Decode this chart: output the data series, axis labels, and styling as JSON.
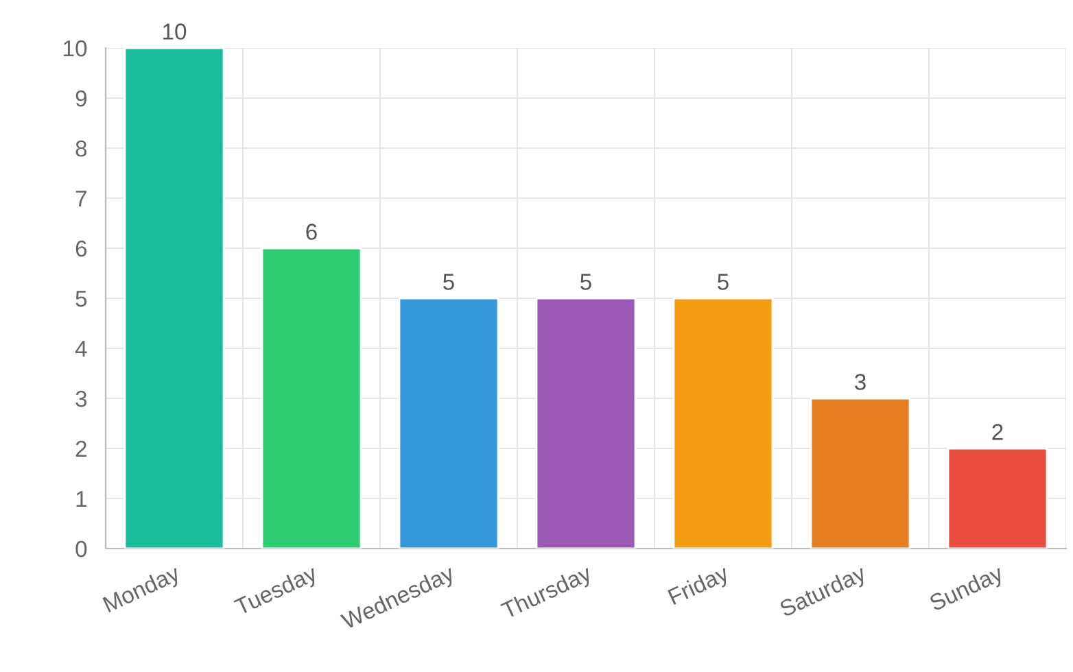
{
  "chart_data": {
    "type": "bar",
    "categories": [
      "Monday",
      "Tuesday",
      "Wednesday",
      "Thursday",
      "Friday",
      "Saturday",
      "Sunday"
    ],
    "values": [
      10,
      6,
      5,
      5,
      5,
      3,
      2
    ],
    "colors": [
      "#1abc9c",
      "#2ecc71",
      "#3498db",
      "#9b59b6",
      "#f39c12",
      "#e67e22",
      "#e74c3c"
    ],
    "ylim": [
      0,
      10
    ],
    "yticks": [
      0,
      1,
      2,
      3,
      4,
      5,
      6,
      7,
      8,
      9,
      10
    ],
    "grid": true,
    "data_labels": true
  }
}
